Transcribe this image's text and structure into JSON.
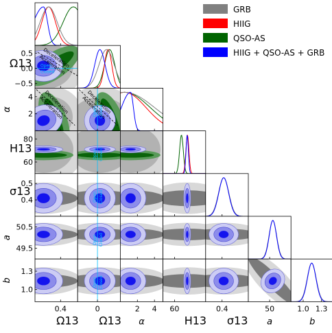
{
  "chart_data": {
    "type": "triangle-corner-plot",
    "parameters": [
      {
        "key": "Om",
        "label": "Ωm₀",
        "range": [
          0.1,
          0.6
        ],
        "ticks": [
          0.4
        ],
        "tick_labels": [
          "0.4"
        ]
      },
      {
        "key": "Ok",
        "label": "Ωk₀",
        "range": [
          -0.65,
          0.75
        ],
        "ticks": [
          0.5,
          0.0,
          -0.5
        ],
        "tick_labels": [
          "0.5",
          "0.0",
          "−0.5"
        ],
        "xticks": [
          0
        ],
        "xtick_labels": [
          "0"
        ]
      },
      {
        "key": "alpha",
        "label": "α",
        "range": [
          0,
          5
        ],
        "ticks": [
          2,
          4
        ],
        "tick_labels": [
          "2",
          "4"
        ]
      },
      {
        "key": "H0",
        "label": "H₀",
        "range": [
          50,
          87
        ],
        "ticks": [
          60,
          80
        ],
        "tick_labels": [
          "60",
          "80"
        ],
        "xticks": [
          60
        ],
        "xtick_labels": [
          "60"
        ]
      },
      {
        "key": "sigma",
        "label": "σext",
        "range": [
          0.3,
          0.56
        ],
        "ticks": [
          0.4,
          0.5
        ],
        "tick_labels": [
          "0.4",
          "0.5"
        ],
        "xticks": [
          0.4
        ],
        "xtick_labels": [
          "0.4"
        ]
      },
      {
        "key": "a",
        "label": "a",
        "range": [
          49.0,
          51.0
        ],
        "ticks": [
          49.5,
          50.5
        ],
        "tick_labels": [
          "49.5",
          "50.5"
        ],
        "xticks": [
          50
        ],
        "xtick_labels": [
          "50"
        ]
      },
      {
        "key": "b",
        "label": "b",
        "range": [
          0.8,
          1.5
        ],
        "ticks": [
          1.0,
          1.3
        ],
        "tick_labels": [
          "1.0",
          "1.3"
        ]
      }
    ],
    "legend": {
      "position": "top-right",
      "entries": [
        {
          "name": "GRB",
          "color": "#808080"
        },
        {
          "name": "HIIG",
          "color": "#ff0000"
        },
        {
          "name": "QSO-AS",
          "color": "#006400"
        },
        {
          "name": "HIIG + QSO-AS + GRB",
          "color": "#0000ff"
        }
      ]
    },
    "annotations": [
      "Deceleration",
      "Acceleration",
      "Open",
      "Closed"
    ],
    "flat_line": {
      "param": "Ok",
      "value": 0,
      "color": "#00bfff"
    },
    "combined_estimates": {
      "Om": 0.2,
      "Ok": 0.08,
      "alpha": 1.2,
      "H0": 71.0,
      "sigma": 0.41,
      "a": 50.15,
      "b": 1.14
    }
  }
}
